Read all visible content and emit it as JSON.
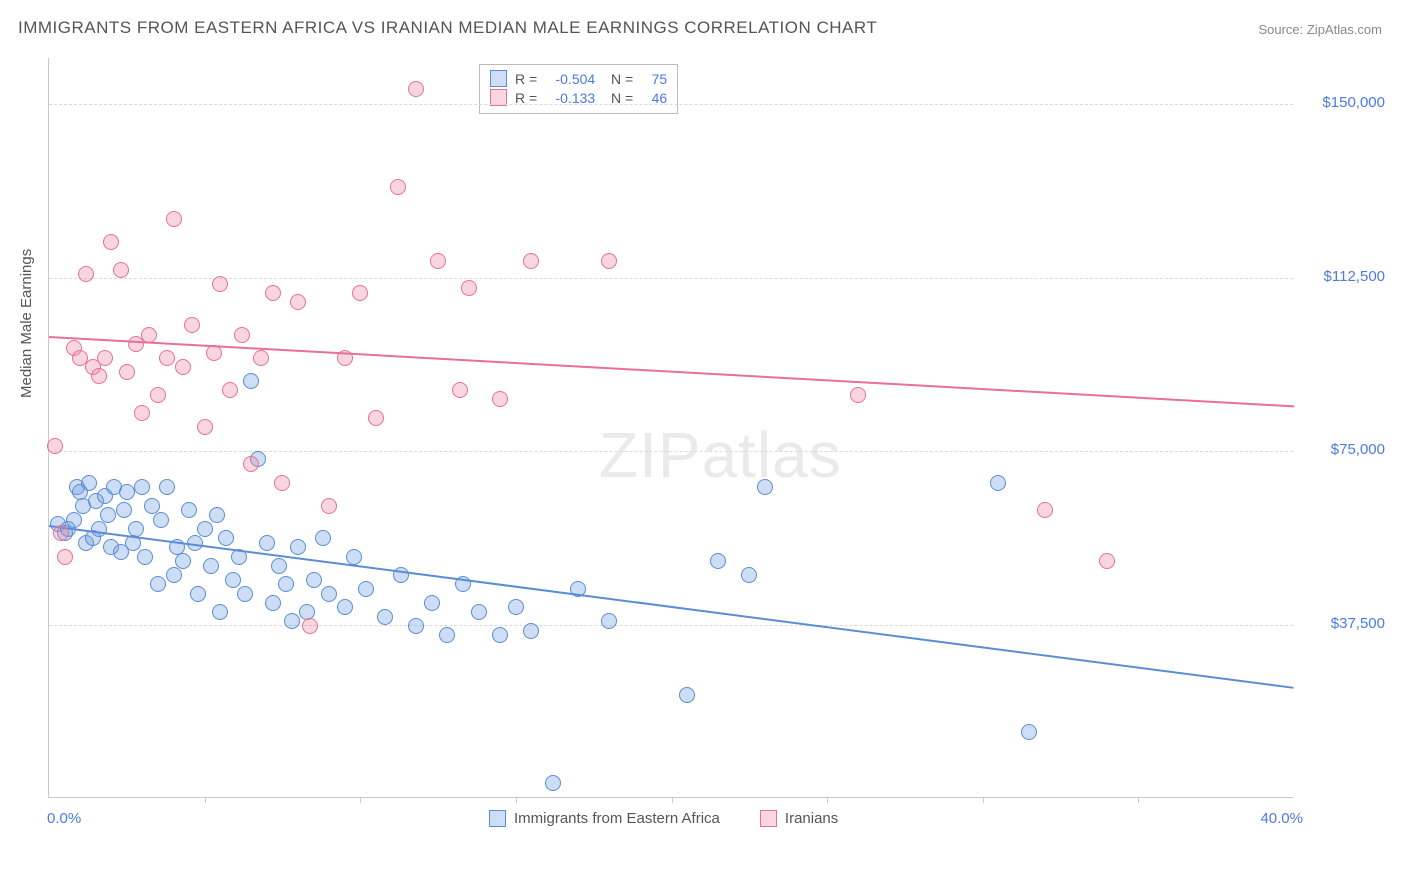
{
  "title": "IMMIGRANTS FROM EASTERN AFRICA VS IRANIAN MEDIAN MALE EARNINGS CORRELATION CHART",
  "source_prefix": "Source: ",
  "source_name": "ZipAtlas.com",
  "watermark": "ZIPatlas",
  "chart": {
    "type": "scatter",
    "xlim": [
      0.0,
      40.0
    ],
    "ylim": [
      0,
      160000
    ],
    "x_min_label": "0.0%",
    "x_max_label": "40.0%",
    "y_axis_label": "Median Male Earnings",
    "y_ticks": [
      {
        "v": 37500,
        "label": "$37,500"
      },
      {
        "v": 75000,
        "label": "$75,000"
      },
      {
        "v": 112500,
        "label": "$112,500"
      },
      {
        "v": 150000,
        "label": "$150,000"
      }
    ],
    "x_tick_step": 5,
    "grid_color": "#d8d8d8",
    "background_color": "#ffffff",
    "marker_radius": 8,
    "marker_fill_opacity": 0.35,
    "line_width": 2,
    "label_fontsize": 15,
    "title_fontsize": 17,
    "series": [
      {
        "name": "Immigrants from Eastern Africa",
        "color": "#5b8dd6",
        "fill": "rgba(109,157,224,0.35)",
        "r": -0.504,
        "n": 75,
        "trend": {
          "y_at_x0": 59000,
          "y_at_x40": 24000
        },
        "points": [
          [
            0.3,
            59000
          ],
          [
            0.5,
            57000
          ],
          [
            0.6,
            58000
          ],
          [
            0.8,
            60000
          ],
          [
            0.9,
            67000
          ],
          [
            1.0,
            66000
          ],
          [
            1.1,
            63000
          ],
          [
            1.2,
            55000
          ],
          [
            1.3,
            68000
          ],
          [
            1.4,
            56000
          ],
          [
            1.5,
            64000
          ],
          [
            1.6,
            58000
          ],
          [
            1.8,
            65000
          ],
          [
            1.9,
            61000
          ],
          [
            2.0,
            54000
          ],
          [
            2.1,
            67000
          ],
          [
            2.3,
            53000
          ],
          [
            2.4,
            62000
          ],
          [
            2.5,
            66000
          ],
          [
            2.7,
            55000
          ],
          [
            2.8,
            58000
          ],
          [
            3.0,
            67000
          ],
          [
            3.1,
            52000
          ],
          [
            3.3,
            63000
          ],
          [
            3.5,
            46000
          ],
          [
            3.6,
            60000
          ],
          [
            3.8,
            67000
          ],
          [
            4.0,
            48000
          ],
          [
            4.1,
            54000
          ],
          [
            4.3,
            51000
          ],
          [
            4.5,
            62000
          ],
          [
            4.7,
            55000
          ],
          [
            4.8,
            44000
          ],
          [
            5.0,
            58000
          ],
          [
            5.2,
            50000
          ],
          [
            5.4,
            61000
          ],
          [
            5.5,
            40000
          ],
          [
            5.7,
            56000
          ],
          [
            5.9,
            47000
          ],
          [
            6.1,
            52000
          ],
          [
            6.3,
            44000
          ],
          [
            6.5,
            90000
          ],
          [
            6.7,
            73000
          ],
          [
            7.0,
            55000
          ],
          [
            7.2,
            42000
          ],
          [
            7.4,
            50000
          ],
          [
            7.6,
            46000
          ],
          [
            7.8,
            38000
          ],
          [
            8.0,
            54000
          ],
          [
            8.3,
            40000
          ],
          [
            8.5,
            47000
          ],
          [
            8.8,
            56000
          ],
          [
            9.0,
            44000
          ],
          [
            9.5,
            41000
          ],
          [
            9.8,
            52000
          ],
          [
            10.2,
            45000
          ],
          [
            10.8,
            39000
          ],
          [
            11.3,
            48000
          ],
          [
            11.8,
            37000
          ],
          [
            12.3,
            42000
          ],
          [
            12.8,
            35000
          ],
          [
            13.3,
            46000
          ],
          [
            13.8,
            40000
          ],
          [
            14.5,
            35000
          ],
          [
            15.0,
            41000
          ],
          [
            15.5,
            36000
          ],
          [
            16.2,
            3000
          ],
          [
            17.0,
            45000
          ],
          [
            18.0,
            38000
          ],
          [
            20.5,
            22000
          ],
          [
            21.5,
            51000
          ],
          [
            22.5,
            48000
          ],
          [
            23.0,
            67000
          ],
          [
            30.5,
            68000
          ],
          [
            31.5,
            14000
          ]
        ]
      },
      {
        "name": "Iranians",
        "color": "#ea6f94",
        "fill": "rgba(236,138,165,0.35)",
        "r": -0.133,
        "n": 46,
        "trend": {
          "y_at_x0": 100000,
          "y_at_x40": 85000
        },
        "points": [
          [
            0.2,
            76000
          ],
          [
            0.4,
            57000
          ],
          [
            0.5,
            52000
          ],
          [
            0.8,
            97000
          ],
          [
            1.0,
            95000
          ],
          [
            1.2,
            113000
          ],
          [
            1.4,
            93000
          ],
          [
            1.6,
            91000
          ],
          [
            1.8,
            95000
          ],
          [
            2.0,
            120000
          ],
          [
            2.3,
            114000
          ],
          [
            2.5,
            92000
          ],
          [
            2.8,
            98000
          ],
          [
            3.0,
            83000
          ],
          [
            3.2,
            100000
          ],
          [
            3.5,
            87000
          ],
          [
            3.8,
            95000
          ],
          [
            4.0,
            125000
          ],
          [
            4.3,
            93000
          ],
          [
            4.6,
            102000
          ],
          [
            5.0,
            80000
          ],
          [
            5.3,
            96000
          ],
          [
            5.5,
            111000
          ],
          [
            5.8,
            88000
          ],
          [
            6.2,
            100000
          ],
          [
            6.5,
            72000
          ],
          [
            6.8,
            95000
          ],
          [
            7.2,
            109000
          ],
          [
            7.5,
            68000
          ],
          [
            8.0,
            107000
          ],
          [
            8.4,
            37000
          ],
          [
            9.0,
            63000
          ],
          [
            9.5,
            95000
          ],
          [
            10.0,
            109000
          ],
          [
            10.5,
            82000
          ],
          [
            11.2,
            132000
          ],
          [
            11.8,
            153000
          ],
          [
            12.5,
            116000
          ],
          [
            13.2,
            88000
          ],
          [
            13.5,
            110000
          ],
          [
            14.5,
            86000
          ],
          [
            15.5,
            116000
          ],
          [
            18.0,
            116000
          ],
          [
            26.0,
            87000
          ],
          [
            32.0,
            62000
          ],
          [
            34.0,
            51000
          ]
        ]
      }
    ],
    "bottom_legend": {
      "label1": "Immigrants from Eastern Africa",
      "label2": "Iranians"
    }
  }
}
